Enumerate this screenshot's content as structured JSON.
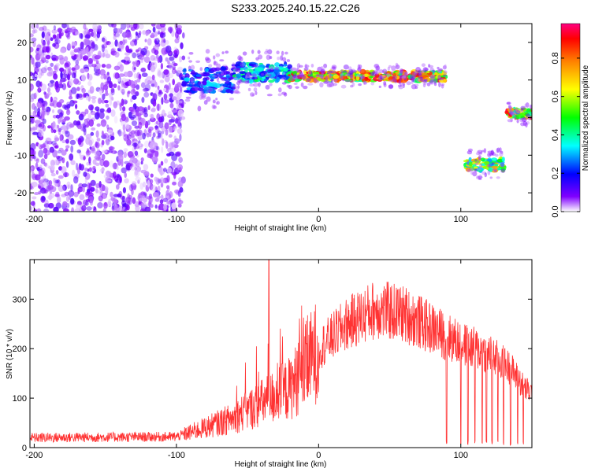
{
  "title": "S233.2025.240.15.22.C26",
  "chart_data": [
    {
      "type": "heatmap",
      "xlabel": "Height of straight line (km)",
      "ylabel": "Frequency (Hz)",
      "xlim": [
        -203,
        150
      ],
      "ylim": [
        -25,
        25
      ],
      "xticks": [
        -200,
        -100,
        0,
        100
      ],
      "yticks": [
        -20,
        -10,
        0,
        10,
        20
      ],
      "colorbar": {
        "label": "Normalized spectral amplitude",
        "range": [
          0.0,
          0.98
        ],
        "ticks": [
          "0.0",
          "0.2",
          "0.4",
          "0.6",
          "0.8"
        ],
        "colors": [
          "#ffffff",
          "#8000ff",
          "#0000ff",
          "#00ffff",
          "#00ff00",
          "#ffff00",
          "#ff8000",
          "#ff0000",
          "#ff0080"
        ]
      },
      "features": [
        {
          "kind": "noise",
          "x_range": [
            -203,
            -95
          ],
          "y_range": [
            -25,
            25
          ],
          "amplitude": 0.12
        },
        {
          "kind": "band",
          "x_range": [
            -95,
            -60
          ],
          "y_center": 10,
          "y_width": 4,
          "amplitude": 0.35
        },
        {
          "kind": "band",
          "x_range": [
            -60,
            -20
          ],
          "y_center": 12,
          "y_width": 3,
          "amplitude": 0.45
        },
        {
          "kind": "band",
          "x_range": [
            -20,
            90
          ],
          "y_center": 11,
          "y_width": 1.5,
          "amplitude": 0.9
        },
        {
          "kind": "band",
          "x_range": [
            103,
            130
          ],
          "y_center": -12.5,
          "y_width": 2,
          "amplitude": 0.7
        },
        {
          "kind": "band",
          "x_range": [
            132,
            150
          ],
          "y_center": 1,
          "y_width": 1.5,
          "amplitude": 0.9
        }
      ]
    },
    {
      "type": "line",
      "xlabel": "Height of straight line (km)",
      "ylabel": "SNR (10 * v/v)",
      "xlim": [
        -203,
        150
      ],
      "ylim": [
        0,
        380
      ],
      "xticks": [
        -200,
        -100,
        0,
        100
      ],
      "yticks": [
        0,
        100,
        200,
        300
      ],
      "color": "#ff3333",
      "profile": [
        {
          "x": -203,
          "y": 20
        },
        {
          "x": -100,
          "y": 22
        },
        {
          "x": -80,
          "y": 40
        },
        {
          "x": -60,
          "y": 60
        },
        {
          "x": -40,
          "y": 90
        },
        {
          "x": -20,
          "y": 120
        },
        {
          "x": 0,
          "y": 200
        },
        {
          "x": 20,
          "y": 250
        },
        {
          "x": 40,
          "y": 280
        },
        {
          "x": 60,
          "y": 270
        },
        {
          "x": 80,
          "y": 240
        },
        {
          "x": 100,
          "y": 210
        },
        {
          "x": 120,
          "y": 190
        },
        {
          "x": 135,
          "y": 160
        },
        {
          "x": 145,
          "y": 120
        },
        {
          "x": 150,
          "y": 110
        }
      ],
      "spike": {
        "x": -35,
        "y": 380
      },
      "dropouts": [
        90,
        100,
        105,
        110,
        115,
        118,
        122,
        126,
        130,
        135,
        140,
        144
      ]
    }
  ]
}
